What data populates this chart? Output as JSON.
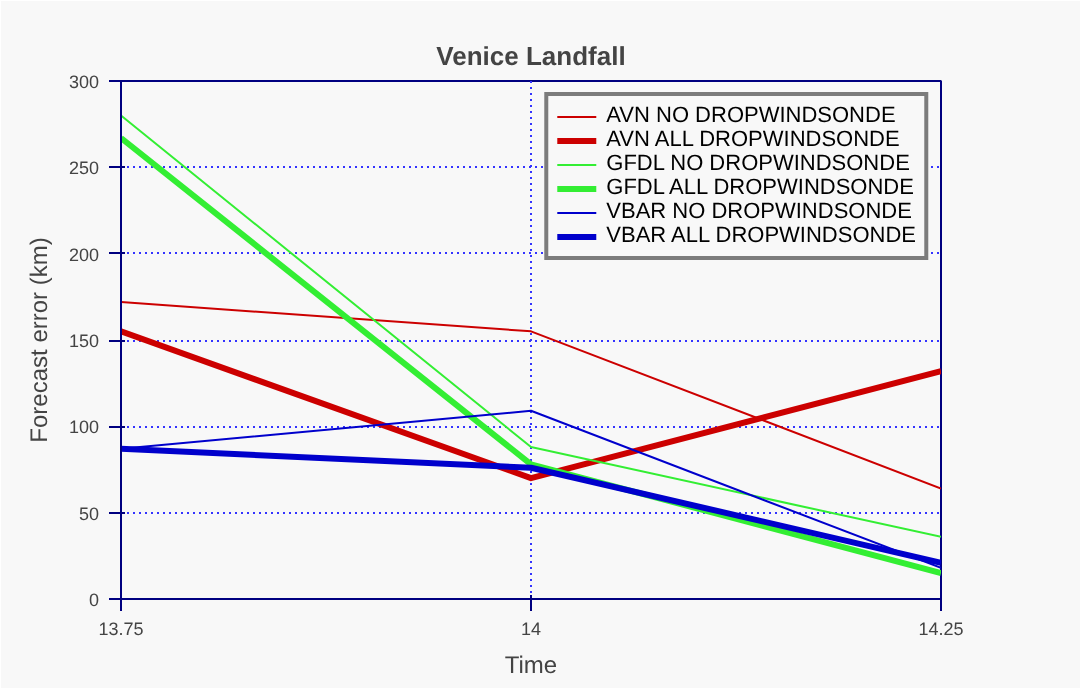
{
  "chart_data": {
    "type": "line",
    "title": "Venice Landfall",
    "xlabel": "Time",
    "ylabel": "Forecast error (km)",
    "x": [
      13.75,
      14,
      14.25
    ],
    "xlim": [
      13.75,
      14.25
    ],
    "xticks": [
      13.75,
      14,
      14.25
    ],
    "ylim": [
      0,
      300
    ],
    "yticks": [
      0,
      50,
      100,
      150,
      200,
      250,
      300
    ],
    "grid": true,
    "legend": "top right",
    "line_style": "solid",
    "series": [
      {
        "name": "AVN NO DROPWINDSONDE",
        "color": "#cc0000",
        "values": [
          172,
          155,
          64
        ]
      },
      {
        "name": "AVN ALL DROPWINDSONDE",
        "color": "#cc0000",
        "values": [
          155,
          70,
          132
        ]
      },
      {
        "name": "GFDL NO DROPWINDSONDE",
        "color": "#33ee33",
        "values": [
          280,
          88,
          36
        ]
      },
      {
        "name": "GFDL ALL DROPWINDSONDE",
        "color": "#33ee33",
        "values": [
          267,
          78,
          15
        ]
      },
      {
        "name": "VBAR NO DROPWINDSONDE",
        "color": "#0000cc",
        "values": [
          87,
          109,
          18
        ]
      },
      {
        "name": "VBAR ALL DROPWINDSONDE",
        "color": "#0000cc",
        "values": [
          87,
          76,
          21
        ]
      }
    ]
  }
}
